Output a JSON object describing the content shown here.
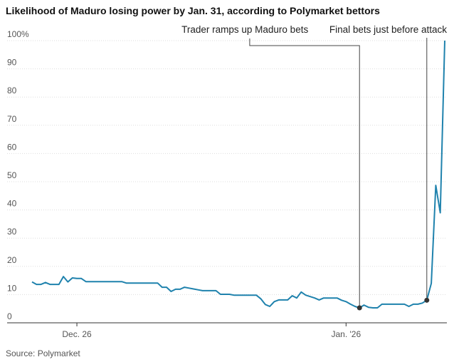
{
  "chart_data": {
    "type": "line",
    "title": "Likelihood of Maduro losing power by Jan. 31, according to Polymarket bettors",
    "source": "Source: Polymarket",
    "categories": [
      null,
      null,
      null,
      null,
      null,
      null,
      null,
      null,
      null,
      null,
      "Dec. 26",
      null,
      null,
      null,
      null,
      null,
      null,
      null,
      null,
      null,
      null,
      null,
      null,
      null,
      null,
      null,
      null,
      null,
      null,
      null,
      null,
      null,
      null,
      null,
      null,
      null,
      null,
      null,
      null,
      null,
      null,
      null,
      null,
      null,
      null,
      null,
      null,
      null,
      null,
      null,
      null,
      null,
      null,
      null,
      null,
      null,
      null,
      null,
      null,
      null,
      null,
      null,
      null,
      null,
      null,
      null,
      null,
      null,
      null,
      null,
      "Jan. '26",
      null,
      null,
      null,
      null,
      null,
      null,
      null,
      null,
      null,
      null,
      null,
      null,
      null,
      null,
      null,
      null,
      null,
      null,
      null,
      null,
      null,
      null
    ],
    "series": [
      {
        "name": "Likelihood",
        "color": "#1f82ad",
        "values": [
          14.5,
          13.6,
          13.6,
          14.3,
          13.6,
          13.6,
          13.6,
          16.4,
          14.5,
          15.9,
          15.7,
          15.7,
          14.6,
          14.6,
          14.6,
          14.6,
          14.6,
          14.6,
          14.6,
          14.6,
          14.6,
          14.1,
          14.1,
          14.1,
          14.1,
          14.1,
          14.1,
          14.1,
          14.1,
          12.6,
          12.6,
          11.1,
          11.9,
          11.9,
          12.6,
          12.3,
          12.0,
          11.7,
          11.4,
          11.4,
          11.4,
          11.4,
          10.1,
          10.1,
          10.1,
          9.8,
          9.8,
          9.8,
          9.8,
          9.8,
          9.8,
          8.5,
          6.5,
          5.8,
          7.5,
          8.1,
          8.1,
          8.1,
          9.6,
          8.8,
          10.9,
          9.8,
          9.3,
          8.8,
          8.1,
          8.8,
          8.8,
          8.8,
          8.8,
          8.0,
          7.5,
          6.6,
          5.8,
          5.3,
          6.3,
          5.5,
          5.3,
          5.3,
          6.6,
          6.6,
          6.6,
          6.6,
          6.6,
          6.6,
          5.8,
          6.6,
          6.6,
          7.0,
          8.0,
          14,
          48.7,
          39,
          100
        ]
      }
    ],
    "annotations": [
      {
        "text": "Trader ramps up Maduro bets",
        "point": 73
      },
      {
        "text": "Final bets just before attack",
        "point": 88
      }
    ],
    "ylim": [
      0,
      100
    ],
    "yticks": [
      0,
      10,
      20,
      30,
      40,
      50,
      60,
      70,
      80,
      90,
      {
        "value": 100,
        "label": "100%"
      }
    ],
    "grid": true
  }
}
